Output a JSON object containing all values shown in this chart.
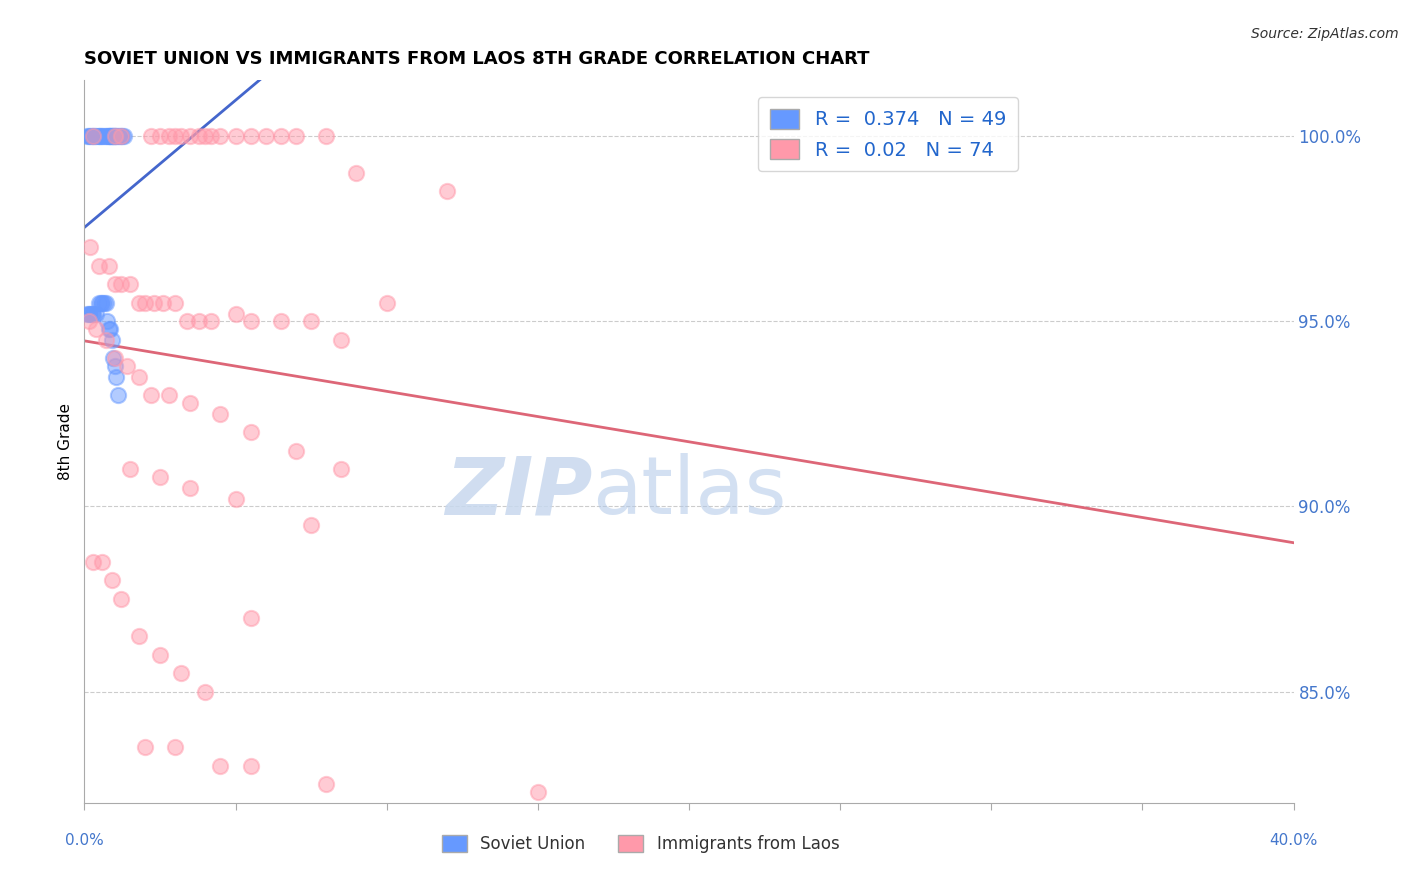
{
  "title": "SOVIET UNION VS IMMIGRANTS FROM LAOS 8TH GRADE CORRELATION CHART",
  "source": "Source: ZipAtlas.com",
  "ylabel": "8th Grade",
  "xlim": [
    0.0,
    40.0
  ],
  "ylim": [
    82.0,
    101.5
  ],
  "yticks": [
    85.0,
    90.0,
    95.0,
    100.0
  ],
  "ytick_labels": [
    "85.0%",
    "90.0%",
    "95.0%",
    "100.0%"
  ],
  "background_color": "#ffffff",
  "grid_color": "#cccccc",
  "soviet_color": "#6699ff",
  "laos_color": "#ff99aa",
  "trend_soviet_color": "#4466cc",
  "trend_laos_color": "#dd6677",
  "R_soviet": 0.374,
  "N_soviet": 49,
  "R_laos": 0.02,
  "N_laos": 74,
  "legend_label_soviet": "Soviet Union",
  "legend_label_laos": "Immigrants from Laos",
  "watermark_zip": "ZIP",
  "watermark_atlas": "atlas",
  "soviet_x": [
    0.1,
    0.15,
    0.2,
    0.25,
    0.3,
    0.35,
    0.4,
    0.5,
    0.5,
    0.55,
    0.6,
    0.65,
    0.7,
    0.75,
    0.8,
    0.8,
    0.85,
    0.85,
    0.9,
    0.9,
    0.95,
    0.95,
    1.0,
    1.0,
    1.05,
    1.1,
    1.15,
    1.2,
    1.25,
    1.3,
    0.1,
    0.15,
    0.2,
    0.25,
    0.3,
    0.4,
    0.5,
    0.55,
    0.6,
    0.65,
    0.7,
    0.75,
    0.8,
    0.85,
    0.9,
    0.95,
    1.0,
    1.05,
    1.1
  ],
  "soviet_y": [
    100.0,
    100.0,
    100.0,
    100.0,
    100.0,
    100.0,
    100.0,
    100.0,
    100.0,
    100.0,
    100.0,
    100.0,
    100.0,
    100.0,
    100.0,
    100.0,
    100.0,
    100.0,
    100.0,
    100.0,
    100.0,
    100.0,
    100.0,
    100.0,
    100.0,
    100.0,
    100.0,
    100.0,
    100.0,
    100.0,
    95.2,
    95.2,
    95.2,
    95.2,
    95.2,
    95.2,
    95.5,
    95.5,
    95.5,
    95.5,
    95.5,
    95.0,
    94.8,
    94.8,
    94.5,
    94.0,
    93.8,
    93.5,
    93.0
  ],
  "laos_x": [
    0.3,
    1.0,
    1.2,
    2.2,
    2.5,
    2.8,
    3.0,
    3.2,
    3.5,
    3.8,
    4.0,
    4.2,
    4.5,
    5.0,
    5.5,
    6.0,
    6.5,
    7.0,
    8.0,
    9.0,
    0.2,
    0.5,
    0.8,
    1.0,
    1.2,
    1.5,
    1.8,
    2.0,
    2.3,
    2.6,
    3.0,
    3.4,
    3.8,
    4.2,
    5.0,
    5.5,
    6.5,
    7.5,
    8.5,
    10.0,
    0.15,
    0.4,
    0.7,
    1.0,
    1.4,
    1.8,
    2.2,
    2.8,
    3.5,
    4.5,
    5.5,
    7.0,
    8.5,
    1.5,
    2.5,
    3.5,
    5.0,
    12.0,
    0.3,
    0.6,
    0.9,
    1.2,
    1.8,
    2.5,
    3.2,
    4.0,
    5.5,
    7.5,
    2.0,
    3.0,
    4.5,
    5.5,
    8.0,
    15.0
  ],
  "laos_y": [
    100.0,
    100.0,
    100.0,
    100.0,
    100.0,
    100.0,
    100.0,
    100.0,
    100.0,
    100.0,
    100.0,
    100.0,
    100.0,
    100.0,
    100.0,
    100.0,
    100.0,
    100.0,
    100.0,
    99.0,
    97.0,
    96.5,
    96.5,
    96.0,
    96.0,
    96.0,
    95.5,
    95.5,
    95.5,
    95.5,
    95.5,
    95.0,
    95.0,
    95.0,
    95.2,
    95.0,
    95.0,
    95.0,
    94.5,
    95.5,
    95.0,
    94.8,
    94.5,
    94.0,
    93.8,
    93.5,
    93.0,
    93.0,
    92.8,
    92.5,
    92.0,
    91.5,
    91.0,
    91.0,
    90.8,
    90.5,
    90.2,
    98.5,
    88.5,
    88.5,
    88.0,
    87.5,
    86.5,
    86.0,
    85.5,
    85.0,
    87.0,
    89.5,
    83.5,
    83.5,
    83.0,
    83.0,
    82.5,
    82.3
  ]
}
